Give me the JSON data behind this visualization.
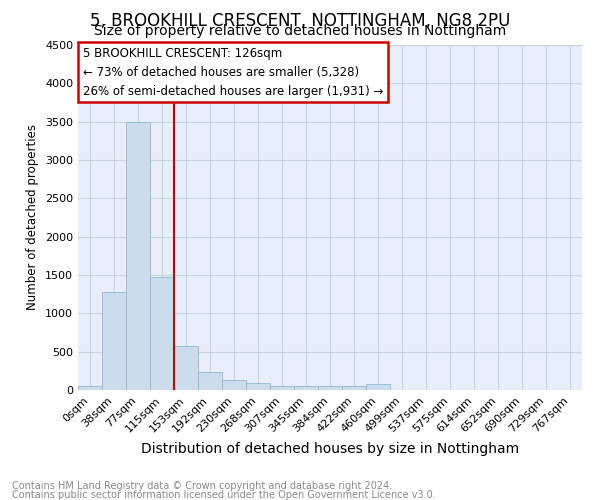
{
  "title1": "5, BROOKHILL CRESCENT, NOTTINGHAM, NG8 2PU",
  "title2": "Size of property relative to detached houses in Nottingham",
  "xlabel": "Distribution of detached houses by size in Nottingham",
  "ylabel": "Number of detached properties",
  "bin_labels": [
    "0sqm",
    "38sqm",
    "77sqm",
    "115sqm",
    "153sqm",
    "192sqm",
    "230sqm",
    "268sqm",
    "307sqm",
    "345sqm",
    "384sqm",
    "422sqm",
    "460sqm",
    "499sqm",
    "537sqm",
    "575sqm",
    "614sqm",
    "652sqm",
    "690sqm",
    "729sqm",
    "767sqm"
  ],
  "bar_values": [
    50,
    1280,
    3500,
    1480,
    580,
    240,
    130,
    90,
    50,
    50,
    50,
    50,
    80,
    0,
    0,
    0,
    0,
    0,
    0,
    0,
    0
  ],
  "bar_color": "#ccdcec",
  "bar_edgecolor": "#90b8d0",
  "vline_x": 3.5,
  "vline_color": "#cc0000",
  "ylim": [
    0,
    4500
  ],
  "yticks": [
    0,
    500,
    1000,
    1500,
    2000,
    2500,
    3000,
    3500,
    4000,
    4500
  ],
  "annotation_text": "5 BROOKHILL CRESCENT: 126sqm\n← 73% of detached houses are smaller (5,328)\n26% of semi-detached houses are larger (1,931) →",
  "annotation_box_color": "#ffffff",
  "annotation_box_edgecolor": "#cc0000",
  "footnote1": "Contains HM Land Registry data © Crown copyright and database right 2024.",
  "footnote2": "Contains public sector information licensed under the Open Government Licence v3.0.",
  "bg_color": "#ffffff",
  "plot_bg_color": "#e8eef8",
  "grid_color": "#c8d4e4",
  "title1_fontsize": 12,
  "title2_fontsize": 10,
  "xlabel_fontsize": 10,
  "ylabel_fontsize": 8.5,
  "tick_fontsize": 8,
  "footnote_fontsize": 7,
  "annot_fontsize": 8.5
}
